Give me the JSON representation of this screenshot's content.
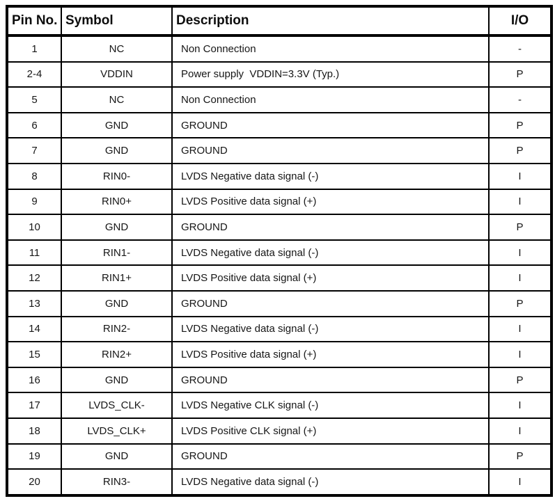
{
  "table": {
    "columns": [
      {
        "key": "pin",
        "label": "Pin No."
      },
      {
        "key": "symbol",
        "label": "Symbol"
      },
      {
        "key": "description",
        "label": "Description"
      },
      {
        "key": "io",
        "label": "I/O"
      }
    ],
    "rows": [
      {
        "pin": "1",
        "symbol": "NC",
        "description": "Non Connection",
        "io": "-"
      },
      {
        "pin": "2-4",
        "symbol": "VDDIN",
        "description": "Power supply  VDDIN=3.3V (Typ.)",
        "io": "P"
      },
      {
        "pin": "5",
        "symbol": "NC",
        "description": "Non Connection",
        "io": "-"
      },
      {
        "pin": "6",
        "symbol": "GND",
        "description": "GROUND",
        "io": "P"
      },
      {
        "pin": "7",
        "symbol": "GND",
        "description": "GROUND",
        "io": "P"
      },
      {
        "pin": "8",
        "symbol": "RIN0-",
        "description": "LVDS Negative data signal (-)",
        "io": "I"
      },
      {
        "pin": "9",
        "symbol": "RIN0+",
        "description": "LVDS Positive data signal (+)",
        "io": "I"
      },
      {
        "pin": "10",
        "symbol": "GND",
        "description": "GROUND",
        "io": "P"
      },
      {
        "pin": "11",
        "symbol": "RIN1-",
        "description": "LVDS Negative data signal (-)",
        "io": "I"
      },
      {
        "pin": "12",
        "symbol": "RIN1+",
        "description": "LVDS Positive data signal (+)",
        "io": "I"
      },
      {
        "pin": "13",
        "symbol": "GND",
        "description": "GROUND",
        "io": "P"
      },
      {
        "pin": "14",
        "symbol": "RIN2-",
        "description": "LVDS Negative data signal (-)",
        "io": "I"
      },
      {
        "pin": "15",
        "symbol": "RIN2+",
        "description": "LVDS Positive data signal (+)",
        "io": "I"
      },
      {
        "pin": "16",
        "symbol": "GND",
        "description": "GROUND",
        "io": "P"
      },
      {
        "pin": "17",
        "symbol": "LVDS_CLK-",
        "description": "LVDS Negative CLK signal (-)",
        "io": "I"
      },
      {
        "pin": "18",
        "symbol": "LVDS_CLK+",
        "description": "LVDS Positive CLK signal (+)",
        "io": "I"
      },
      {
        "pin": "19",
        "symbol": "GND",
        "description": "GROUND",
        "io": "P"
      },
      {
        "pin": "20",
        "symbol": "RIN3-",
        "description": "LVDS Negative data signal (-)",
        "io": "I"
      }
    ]
  }
}
